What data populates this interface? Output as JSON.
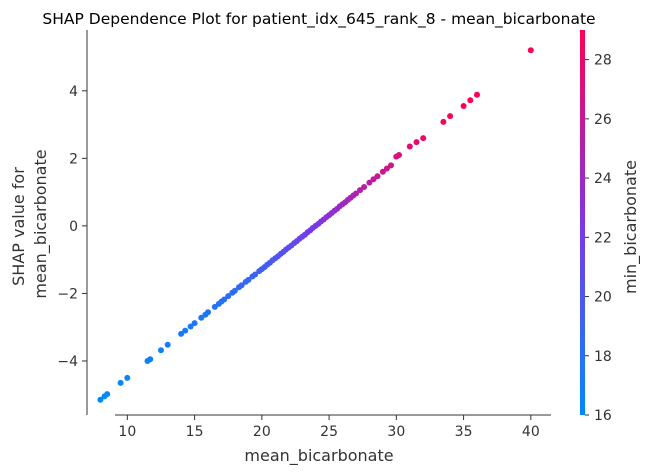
{
  "chart_data": {
    "type": "scatter",
    "title": "SHAP Dependence Plot for patient_idx_645_rank_8 - mean_bicarbonate",
    "xlabel": "mean_bicarbonate",
    "ylabel_line1": "SHAP value for",
    "ylabel_line2": "mean_bicarbonate",
    "xlim": [
      7,
      41.5
    ],
    "ylim": [
      -5.6,
      5.8
    ],
    "xticks": [
      10,
      15,
      20,
      25,
      30,
      35,
      40
    ],
    "yticks": [
      -4,
      -2,
      0,
      2,
      4
    ],
    "colorbar": {
      "label": "min_bicarbonate",
      "min": 16,
      "max": 29,
      "ticks": [
        16,
        18,
        20,
        22,
        24,
        26,
        28
      ],
      "color_low": "#008afb",
      "color_mid": "#7e36e6",
      "color_high": "#ff0052"
    },
    "grid": false,
    "points": [
      [
        8.0,
        -5.15,
        16.0
      ],
      [
        8.3,
        -5.05,
        16.0
      ],
      [
        8.5,
        -4.98,
        16.2
      ],
      [
        9.5,
        -4.65,
        16.3
      ],
      [
        10.0,
        -4.5,
        16.4
      ],
      [
        11.5,
        -4.0,
        16.6
      ],
      [
        11.7,
        -3.95,
        16.7
      ],
      [
        12.5,
        -3.68,
        16.8
      ],
      [
        13.0,
        -3.52,
        17.0
      ],
      [
        14.0,
        -3.2,
        17.1
      ],
      [
        14.3,
        -3.1,
        17.2
      ],
      [
        14.7,
        -2.98,
        17.3
      ],
      [
        15.0,
        -2.88,
        17.4
      ],
      [
        15.5,
        -2.72,
        17.5
      ],
      [
        15.8,
        -2.63,
        17.6
      ],
      [
        16.0,
        -2.56,
        17.7
      ],
      [
        16.5,
        -2.4,
        17.8
      ],
      [
        16.8,
        -2.31,
        17.9
      ],
      [
        17.0,
        -2.24,
        18.0
      ],
      [
        17.2,
        -2.18,
        18.1
      ],
      [
        17.5,
        -2.08,
        18.2
      ],
      [
        17.8,
        -1.98,
        18.3
      ],
      [
        18.0,
        -1.92,
        18.4
      ],
      [
        18.3,
        -1.82,
        18.5
      ],
      [
        18.5,
        -1.76,
        18.6
      ],
      [
        18.8,
        -1.66,
        18.7
      ],
      [
        19.0,
        -1.6,
        18.8
      ],
      [
        19.3,
        -1.5,
        18.9
      ],
      [
        19.5,
        -1.44,
        19.0
      ],
      [
        19.8,
        -1.34,
        19.1
      ],
      [
        20.0,
        -1.28,
        19.3
      ],
      [
        20.2,
        -1.22,
        19.4
      ],
      [
        20.4,
        -1.15,
        19.5
      ],
      [
        20.6,
        -1.09,
        19.6
      ],
      [
        20.8,
        -1.02,
        19.8
      ],
      [
        21.0,
        -0.96,
        20.0
      ],
      [
        21.2,
        -0.9,
        20.1
      ],
      [
        21.4,
        -0.83,
        20.3
      ],
      [
        21.6,
        -0.77,
        20.4
      ],
      [
        21.8,
        -0.7,
        20.6
      ],
      [
        22.0,
        -0.64,
        20.8
      ],
      [
        22.2,
        -0.58,
        20.9
      ],
      [
        22.4,
        -0.51,
        21.1
      ],
      [
        22.6,
        -0.45,
        21.2
      ],
      [
        22.8,
        -0.38,
        21.4
      ],
      [
        23.0,
        -0.32,
        21.6
      ],
      [
        23.2,
        -0.26,
        21.7
      ],
      [
        23.4,
        -0.19,
        21.9
      ],
      [
        23.6,
        -0.13,
        22.0
      ],
      [
        23.8,
        -0.06,
        22.2
      ],
      [
        24.0,
        0.0,
        22.4
      ],
      [
        24.2,
        0.06,
        22.5
      ],
      [
        24.4,
        0.13,
        22.7
      ],
      [
        24.6,
        0.19,
        22.9
      ],
      [
        24.8,
        0.26,
        23.0
      ],
      [
        25.0,
        0.32,
        23.2
      ],
      [
        25.2,
        0.38,
        23.4
      ],
      [
        25.4,
        0.45,
        23.5
      ],
      [
        25.6,
        0.51,
        23.7
      ],
      [
        25.8,
        0.58,
        23.9
      ],
      [
        26.0,
        0.64,
        24.0
      ],
      [
        26.2,
        0.7,
        24.2
      ],
      [
        26.4,
        0.77,
        24.4
      ],
      [
        26.6,
        0.83,
        24.5
      ],
      [
        26.8,
        0.9,
        24.7
      ],
      [
        27.0,
        0.96,
        24.9
      ],
      [
        27.3,
        1.06,
        25.1
      ],
      [
        27.6,
        1.15,
        25.3
      ],
      [
        28.0,
        1.28,
        25.6
      ],
      [
        28.3,
        1.38,
        25.8
      ],
      [
        28.6,
        1.47,
        26.0
      ],
      [
        29.0,
        1.6,
        26.3
      ],
      [
        29.3,
        1.7,
        26.5
      ],
      [
        29.6,
        1.79,
        26.7
      ],
      [
        30.0,
        2.05,
        27.0
      ],
      [
        30.2,
        2.1,
        27.1
      ],
      [
        31.0,
        2.35,
        27.5
      ],
      [
        31.5,
        2.48,
        27.8
      ],
      [
        32.0,
        2.6,
        28.0
      ],
      [
        33.5,
        3.08,
        28.5
      ],
      [
        34.0,
        3.25,
        28.7
      ],
      [
        35.0,
        3.55,
        28.9
      ],
      [
        35.5,
        3.72,
        29.0
      ],
      [
        36.0,
        3.88,
        29.0
      ],
      [
        40.0,
        5.2,
        29.0
      ]
    ]
  }
}
